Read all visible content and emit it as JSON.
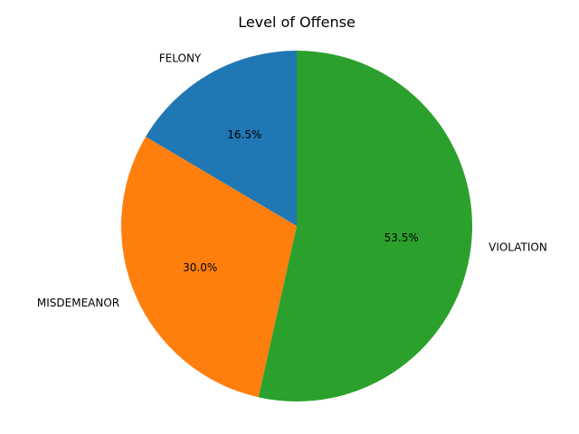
{
  "chart_data": {
    "type": "pie",
    "title": "Level of Offense",
    "categories": [
      "FELONY",
      "MISDEMEANOR",
      "VIOLATION"
    ],
    "values": [
      16.5,
      30.0,
      53.5
    ],
    "value_labels": [
      "16.5%",
      "30.0%",
      "53.5%"
    ],
    "colors": [
      "#1f77b4",
      "#ff7f0e",
      "#2ca02c"
    ],
    "start_angle_deg": 90,
    "direction": "counterclockwise",
    "legend": "none"
  }
}
